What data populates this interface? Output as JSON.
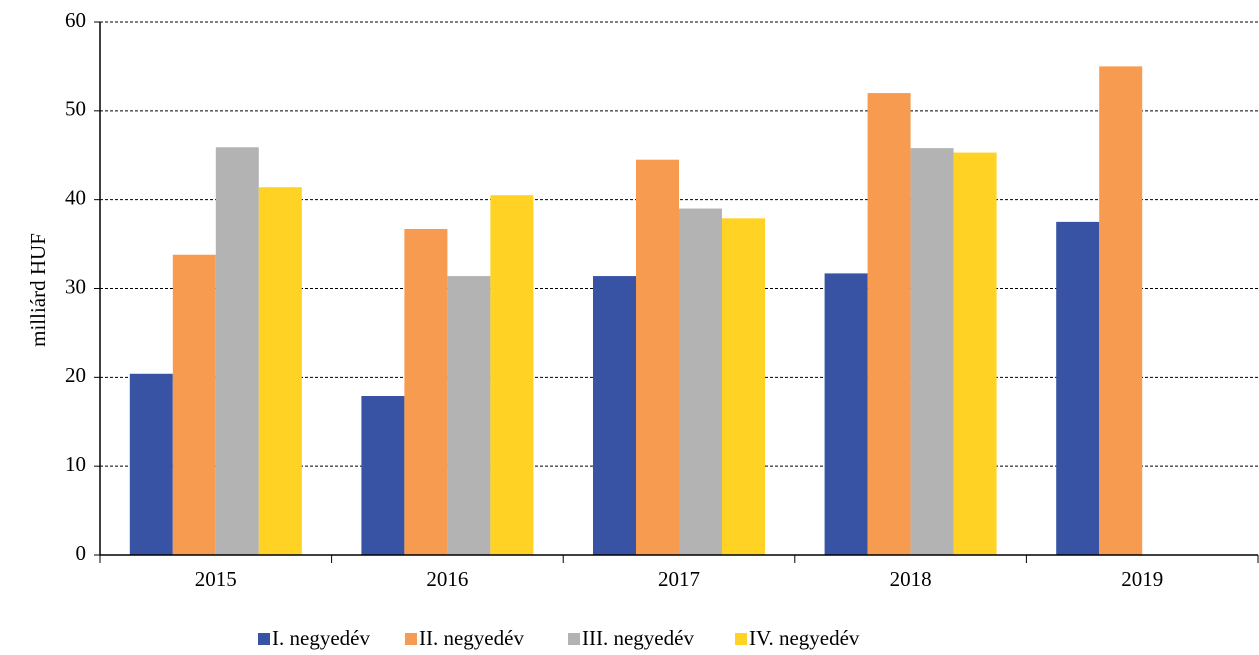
{
  "chart_data": {
    "type": "bar",
    "categories": [
      "2015",
      "2016",
      "2017",
      "2018",
      "2019"
    ],
    "series": [
      {
        "name": "I. negyedév",
        "color": "#3953a4",
        "values": [
          20.4,
          17.9,
          31.4,
          31.7,
          37.5
        ]
      },
      {
        "name": "II. negyedév",
        "color": "#f79b51",
        "values": [
          33.8,
          36.7,
          44.5,
          52.0,
          55.0
        ]
      },
      {
        "name": "III. negyedév",
        "color": "#b3b3b3",
        "values": [
          45.9,
          31.4,
          39.0,
          45.8,
          null
        ]
      },
      {
        "name": "IV. negyedév",
        "color": "#ffd224",
        "values": [
          41.4,
          40.5,
          37.9,
          45.3,
          null
        ]
      }
    ],
    "ylabel": "milliárd HUF",
    "ylim": [
      0,
      60
    ],
    "yticks": [
      0,
      10,
      20,
      30,
      40,
      50,
      60
    ],
    "grid": true,
    "legend": "bottom"
  }
}
